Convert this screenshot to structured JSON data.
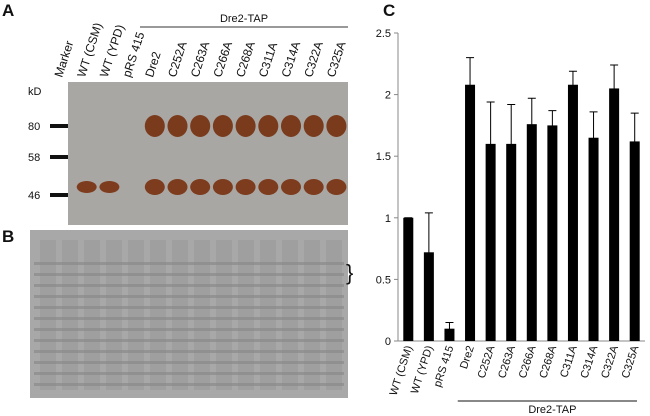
{
  "panels": {
    "a": "A",
    "b": "B",
    "c": "C"
  },
  "blot": {
    "lanes": [
      "Marker",
      "WT (CSM)",
      "WT (YPD)",
      "pRS 415",
      "Dre2",
      "C252A",
      "C263A",
      "C266A",
      "C268A",
      "C311A",
      "C314A",
      "C322A",
      "C325A"
    ],
    "group": "Dre2-TAP",
    "unit": "kD",
    "markers": [
      "80",
      "58",
      "46"
    ]
  },
  "chart_data": {
    "type": "bar",
    "group_label": "Dre2-TAP",
    "categories": [
      "WT (CSM)",
      "WT (YPD)",
      "pRS 415",
      "Dre2",
      "C252A",
      "C263A",
      "C266A",
      "C268A",
      "C311A",
      "C314A",
      "C322A",
      "C325A"
    ],
    "values": [
      1.0,
      0.72,
      0.1,
      2.08,
      1.6,
      1.6,
      1.76,
      1.75,
      2.08,
      1.65,
      2.05,
      1.62
    ],
    "errors": [
      0,
      0.32,
      0.05,
      0.22,
      0.34,
      0.32,
      0.21,
      0.12,
      0.11,
      0.21,
      0.19,
      0.23
    ],
    "color": "#000000",
    "ylim": [
      0,
      2.5
    ],
    "yticks": [
      0,
      0.5,
      1,
      1.5,
      2,
      2.5
    ]
  }
}
